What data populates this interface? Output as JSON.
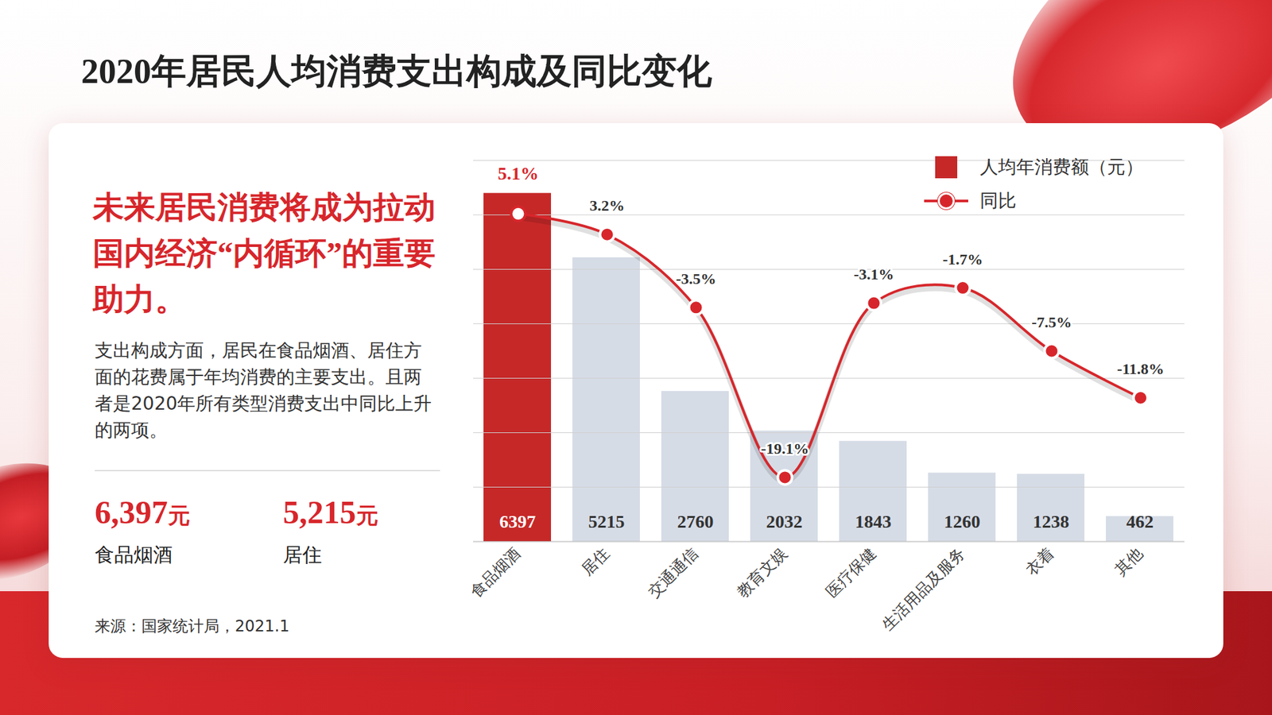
{
  "title": "2020年居民人均消费支出构成及同比变化",
  "headline": "未来居民消费将成为拉动国内经济“内循环”的重要助力。",
  "description": "支出构成方面，居民在食品烟酒、居住方面的花费属于年均消费的主要支出。且两者是2020年所有类型消费支出中同比上升的两项。",
  "highlights": [
    {
      "value": "6,397",
      "unit": "元",
      "label": "食品烟酒"
    },
    {
      "value": "5,215",
      "unit": "元",
      "label": "居住"
    }
  ],
  "source": "来源：国家统计局，2021.1",
  "chart_data": {
    "type": "bar",
    "categories": [
      "食品烟酒",
      "居住",
      "交通通信",
      "教育文娱",
      "医疗保健",
      "生活用品及服务",
      "衣着",
      "其他"
    ],
    "series": [
      {
        "name": "人均年消费额（元）",
        "type": "bar",
        "colors": [
          "#c62828",
          "#d6dce6",
          "#d6dce6",
          "#d6dce6",
          "#d6dce6",
          "#d6dce6",
          "#d6dce6",
          "#d6dce6"
        ],
        "values": [
          6397,
          5215,
          2760,
          2032,
          1843,
          1260,
          1238,
          462
        ],
        "data_labels": true
      },
      {
        "name": "同比",
        "type": "line",
        "axis": "y2",
        "color": "#d7262b",
        "marker": "circle",
        "line_style": "solid",
        "values": [
          5.1,
          3.2,
          -3.5,
          -19.1,
          -3.1,
          -1.7,
          -7.5,
          -11.8
        ],
        "value_labels": [
          "5.1%",
          "3.2%",
          "-3.5%",
          "-19.1%",
          "-3.1%",
          "-1.7%",
          "-7.5%",
          "-11.8%"
        ],
        "data_labels": true
      }
    ],
    "ylim": [
      0,
      7000
    ],
    "yticks": [
      0,
      1000,
      2000,
      3000,
      4000,
      5000,
      6000,
      7000
    ],
    "y2lim": [
      -25,
      10
    ],
    "y2ticks": [
      -25,
      -20,
      -15,
      -10,
      -5,
      0,
      5,
      10
    ],
    "grid": true,
    "legend": "top-right",
    "tick_labels": "x"
  }
}
